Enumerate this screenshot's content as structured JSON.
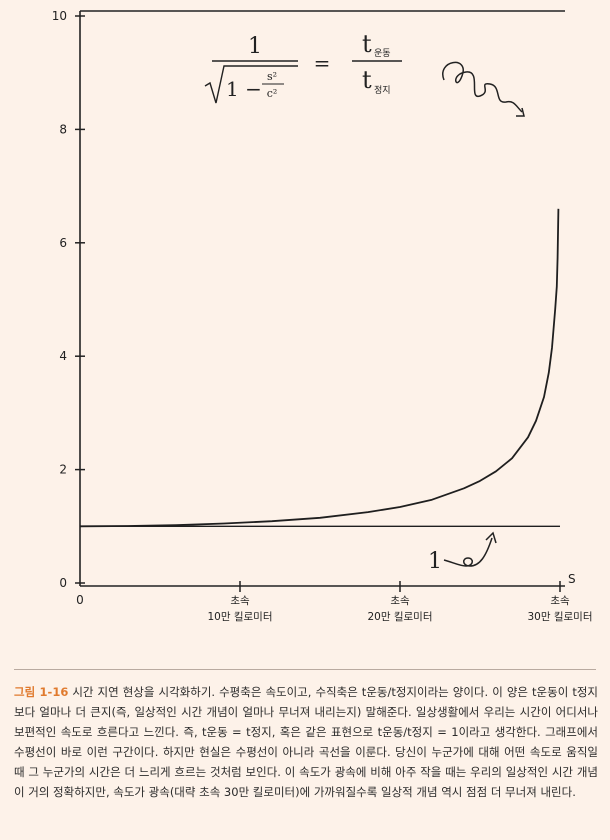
{
  "chart_data": {
    "type": "line",
    "title": "",
    "xlabel": "",
    "x_axis_end_label": "S",
    "ylabel": "",
    "ylim": [
      0,
      10
    ],
    "y_ticks": [
      0,
      2,
      4,
      6,
      8,
      10
    ],
    "xlim": [
      0,
      30
    ],
    "x_zero_label": "0",
    "categories": [
      {
        "x": 10,
        "line1": "초속",
        "line2": "10만 킬로미터"
      },
      {
        "x": 20,
        "line1": "초속",
        "line2": "20만 킬로미터"
      },
      {
        "x": 30,
        "line1": "초속",
        "line2": "30만 킬로미터"
      }
    ],
    "series": [
      {
        "x": [
          0,
          3,
          6,
          9,
          12,
          15,
          18,
          20,
          22,
          24,
          25,
          26,
          27,
          28,
          28.5,
          29,
          29.3,
          29.5,
          29.7,
          29.8,
          29.85,
          29.9
        ],
        "y": [
          1.0,
          1.005,
          1.02,
          1.05,
          1.09,
          1.15,
          1.25,
          1.34,
          1.47,
          1.67,
          1.8,
          1.97,
          2.2,
          2.57,
          2.86,
          3.28,
          3.71,
          4.15,
          4.83,
          5.23,
          5.74,
          6.6
        ]
      },
      {
        "x": [
          0,
          30
        ],
        "y": [
          1,
          1
        ]
      }
    ],
    "annotations": {
      "formula_numerator": "1",
      "formula_denominator_1": "1 −",
      "formula_s2": "s²",
      "formula_c2": "c²",
      "formula_equals": "=",
      "formula_rhs_top": "t",
      "formula_rhs_top_sub": "운동",
      "formula_rhs_bottom": "t",
      "formula_rhs_bottom_sub": "정지",
      "baseline_marker": "1"
    }
  },
  "caption": {
    "label": "그림 1-16",
    "text": "시간 지연 현상을 시각화하기. 수평축은 속도이고, 수직축은 t운동/t정지이라는 양이다. 이 양은 t운동이 t정지보다 얼마나 더 큰지(즉, 일상적인 시간 개념이 얼마나 무너져 내리는지) 말해준다. 일상생활에서 우리는 시간이 어디서나 보편적인 속도로 흐른다고 느낀다. 즉, t운동 = t정지, 혹은 같은 표현으로 t운동/t정지 = 1이라고 생각한다. 그래프에서 수평선이 바로 이런 구간이다. 하지만 현실은 수평선이 아니라 곡선을 이룬다. 당신이 누군가에 대해 어떤 속도로 움직일 때 그 누군가의 시간은 더 느리게 흐르는 것처럼 보인다. 이 속도가 광속에 비해 아주 작을 때는 우리의 일상적인 시간 개념이 거의 정확하지만, 속도가 광속(대략 초속 30만 킬로미터)에 가까워질수록 일상적 개념 역시 점점 더 무너져 내린다."
  }
}
